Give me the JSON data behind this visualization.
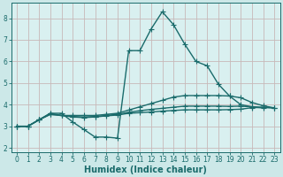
{
  "bg_color": "#cce8e8",
  "plot_bg_color": "#d9f0f0",
  "grid_color": "#c8b8b8",
  "line_color": "#1a6b6b",
  "xlabel": "Humidex (Indice chaleur)",
  "xlabel_fontsize": 7,
  "ytick_labels": [
    "2",
    "3",
    "4",
    "5",
    "6",
    "7",
    "8"
  ],
  "yticks": [
    2,
    3,
    4,
    5,
    6,
    7,
    8
  ],
  "xticks": [
    0,
    1,
    2,
    3,
    4,
    5,
    6,
    7,
    8,
    9,
    10,
    11,
    12,
    13,
    14,
    15,
    16,
    17,
    18,
    19,
    20,
    21,
    22,
    23
  ],
  "xlim": [
    -0.5,
    23.5
  ],
  "ylim": [
    1.8,
    8.7
  ],
  "series": [
    {
      "x": [
        0,
        1,
        2,
        3,
        4,
        5,
        6,
        7,
        8,
        9,
        10,
        11,
        12,
        13,
        14,
        15,
        16,
        17,
        18,
        19,
        20,
        21,
        22
      ],
      "y": [
        3.0,
        3.0,
        3.3,
        3.6,
        3.6,
        3.2,
        2.85,
        2.5,
        2.5,
        2.45,
        6.5,
        6.5,
        7.5,
        8.3,
        7.7,
        6.8,
        6.0,
        5.8,
        4.95,
        4.4,
        4.0,
        3.9,
        3.85
      ],
      "marker": "+",
      "markersize": 4,
      "linewidth": 1.0
    },
    {
      "x": [
        0,
        1,
        2,
        3,
        4,
        5,
        6,
        7,
        8,
        9,
        10,
        11,
        12,
        13,
        14,
        15,
        16,
        17,
        18,
        19,
        20,
        21,
        22,
        23
      ],
      "y": [
        3.0,
        3.0,
        3.3,
        3.6,
        3.5,
        3.5,
        3.5,
        3.5,
        3.55,
        3.6,
        3.75,
        3.9,
        4.05,
        4.2,
        4.35,
        4.42,
        4.42,
        4.42,
        4.42,
        4.4,
        4.32,
        4.1,
        3.95,
        3.85
      ],
      "marker": "+",
      "markersize": 4,
      "linewidth": 1.0
    },
    {
      "x": [
        0,
        1,
        2,
        3,
        4,
        5,
        6,
        7,
        8,
        9,
        10,
        11,
        12,
        13,
        14,
        15,
        16,
        17,
        18,
        19,
        20,
        21,
        22,
        23
      ],
      "y": [
        3.0,
        3.0,
        3.3,
        3.55,
        3.5,
        3.45,
        3.43,
        3.45,
        3.5,
        3.55,
        3.65,
        3.72,
        3.78,
        3.83,
        3.88,
        3.93,
        3.93,
        3.93,
        3.93,
        3.92,
        3.93,
        3.9,
        3.88,
        3.85
      ],
      "marker": "+",
      "markersize": 4,
      "linewidth": 1.0
    },
    {
      "x": [
        0,
        1,
        2,
        3,
        4,
        5,
        6,
        7,
        8,
        9,
        10,
        11,
        12,
        13,
        14,
        15,
        16,
        17,
        18,
        19,
        20,
        21,
        22,
        23
      ],
      "y": [
        3.0,
        3.0,
        3.3,
        3.55,
        3.5,
        3.43,
        3.4,
        3.43,
        3.48,
        3.52,
        3.6,
        3.63,
        3.66,
        3.7,
        3.73,
        3.76,
        3.76,
        3.76,
        3.76,
        3.77,
        3.79,
        3.86,
        3.87,
        3.85
      ],
      "marker": "+",
      "markersize": 4,
      "linewidth": 1.0
    }
  ]
}
